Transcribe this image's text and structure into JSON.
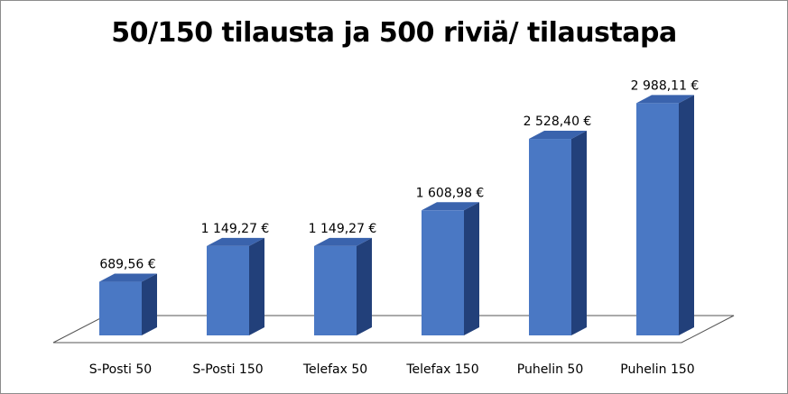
{
  "chart_data": {
    "type": "bar",
    "title": "50/150 tilausta ja 500 riviä/ tilaustapa",
    "categories": [
      "S-Posti 50",
      "S-Posti 150",
      "Telefax 50",
      "Telefax 150",
      "Puhelin 50",
      "Puhelin 150"
    ],
    "values": [
      689.56,
      1149.27,
      1149.27,
      1608.98,
      2528.4,
      2988.11
    ],
    "data_labels": [
      "689,56 €",
      "1 149,27 €",
      "1 149,27 €",
      "1 608,98 €",
      "2 528,40 €",
      "2 988,11 €"
    ],
    "xlabel": "",
    "ylabel": "",
    "grid": false,
    "legend": "none",
    "style": "3d-column",
    "colors": {
      "front": "#4a78c4",
      "side": "#22407a",
      "top": "#3a63ad",
      "floor": "#ffffff",
      "floor_edge": "#555555",
      "border": "#8c8c8c"
    }
  }
}
